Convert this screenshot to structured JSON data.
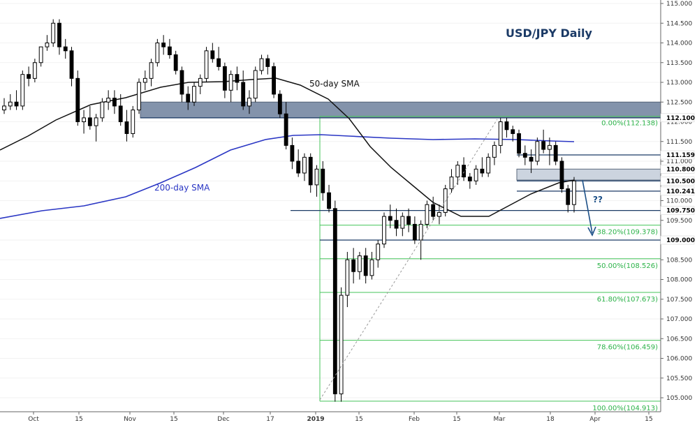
{
  "chart_data": {
    "type": "candlestick",
    "title": "USD/JPY Daily",
    "ylim": [
      104.8,
      115.1
    ],
    "y_ticks": [
      "115.000",
      "114.500",
      "114.000",
      "113.500",
      "113.000",
      "112.500",
      "112.000",
      "111.500",
      "111.000",
      "110.500",
      "110.000",
      "109.500",
      "109.000",
      "108.500",
      "108.000",
      "107.500",
      "107.000",
      "106.500",
      "106.000",
      "105.500",
      "105.000"
    ],
    "x_ticks": [
      "Oct",
      "15",
      "Nov",
      "15",
      "Dec",
      "17",
      "2019",
      "15",
      "Feb",
      "15",
      "Mar",
      "18",
      "Apr",
      "15"
    ],
    "highlight_levels": [
      "112.100",
      "111.159",
      "110.800",
      "110.522",
      "110.500",
      "110.241",
      "109.750",
      "109.000"
    ],
    "fibonacci": [
      {
        "label": "0.00%(112.138)",
        "value": 112.138
      },
      {
        "label": "38.20%(109.378)",
        "value": 109.378
      },
      {
        "label": "50.00%(108.526)",
        "value": 108.526
      },
      {
        "label": "61.80%(107.673)",
        "value": 107.673
      },
      {
        "label": "78.60%(106.459)",
        "value": 106.459
      },
      {
        "label": "100.00%(104.913)",
        "value": 104.913
      }
    ],
    "annotations": {
      "sma50_label": "50-day SMA",
      "sma200_label": "200-day SMA",
      "question": "??"
    },
    "zones": [
      {
        "name": "upper-resistance-zone",
        "from": 112.1,
        "to": 112.5
      },
      {
        "name": "mid-resistance-zone",
        "from": 110.522,
        "to": 110.8
      }
    ],
    "horizontal_lines": [
      112.1,
      111.159,
      110.5,
      110.241,
      109.75,
      109.0
    ],
    "candles": [
      [
        112.3,
        112.6,
        112.2,
        112.4
      ],
      [
        112.4,
        112.7,
        112.3,
        112.5
      ],
      [
        112.5,
        112.8,
        112.3,
        112.4
      ],
      [
        112.4,
        113.3,
        112.3,
        113.2
      ],
      [
        113.2,
        113.4,
        112.9,
        113.1
      ],
      [
        113.1,
        113.6,
        113.0,
        113.5
      ],
      [
        113.5,
        113.9,
        113.4,
        113.9
      ],
      [
        113.9,
        114.2,
        113.8,
        114.0
      ],
      [
        114.0,
        114.6,
        113.9,
        114.5
      ],
      [
        114.5,
        114.6,
        113.7,
        113.9
      ],
      [
        113.9,
        114.1,
        113.6,
        113.8
      ],
      [
        113.8,
        113.9,
        112.9,
        113.1
      ],
      [
        113.1,
        113.3,
        111.9,
        112.0
      ],
      [
        112.0,
        112.3,
        111.7,
        112.1
      ],
      [
        112.1,
        112.4,
        111.8,
        111.9
      ],
      [
        111.9,
        112.2,
        111.5,
        112.1
      ],
      [
        112.1,
        112.6,
        112.0,
        112.5
      ],
      [
        112.5,
        112.8,
        112.3,
        112.6
      ],
      [
        112.6,
        112.8,
        112.2,
        112.4
      ],
      [
        112.4,
        112.7,
        111.9,
        112.0
      ],
      [
        112.0,
        112.3,
        111.5,
        111.7
      ],
      [
        111.7,
        112.4,
        111.6,
        112.3
      ],
      [
        112.3,
        113.1,
        112.2,
        113.0
      ],
      [
        113.0,
        113.3,
        112.8,
        113.1
      ],
      [
        113.1,
        113.6,
        112.9,
        113.5
      ],
      [
        113.5,
        114.1,
        113.4,
        114.0
      ],
      [
        114.0,
        114.2,
        113.7,
        113.9
      ],
      [
        113.9,
        114.1,
        113.6,
        113.7
      ],
      [
        113.7,
        113.8,
        113.2,
        113.3
      ],
      [
        113.3,
        113.4,
        112.5,
        112.7
      ],
      [
        112.7,
        112.9,
        112.3,
        112.5
      ],
      [
        112.5,
        113.0,
        112.4,
        112.9
      ],
      [
        112.9,
        113.2,
        112.7,
        113.1
      ],
      [
        113.1,
        113.9,
        113.0,
        113.8
      ],
      [
        113.8,
        114.0,
        113.5,
        113.6
      ],
      [
        113.6,
        113.9,
        113.3,
        113.4
      ],
      [
        113.4,
        113.5,
        112.6,
        112.8
      ],
      [
        112.8,
        113.3,
        112.5,
        113.2
      ],
      [
        113.2,
        113.4,
        112.8,
        113.0
      ],
      [
        113.0,
        113.3,
        112.3,
        112.4
      ],
      [
        112.4,
        112.8,
        112.2,
        112.6
      ],
      [
        112.6,
        113.4,
        112.5,
        113.3
      ],
      [
        113.3,
        113.7,
        113.2,
        113.6
      ],
      [
        113.6,
        113.7,
        113.2,
        113.4
      ],
      [
        113.4,
        113.5,
        112.6,
        112.7
      ],
      [
        112.7,
        112.8,
        112.1,
        112.2
      ],
      [
        112.2,
        112.5,
        111.3,
        111.4
      ],
      [
        111.4,
        111.6,
        110.8,
        111.0
      ],
      [
        111.0,
        111.3,
        110.6,
        110.7
      ],
      [
        110.7,
        111.2,
        110.5,
        111.1
      ],
      [
        111.1,
        111.2,
        110.2,
        110.4
      ],
      [
        110.4,
        110.9,
        110.1,
        110.8
      ],
      [
        110.8,
        111.0,
        110.0,
        110.2
      ],
      [
        110.2,
        110.4,
        109.7,
        109.8
      ],
      [
        109.8,
        110.0,
        104.9,
        105.1
      ],
      [
        105.1,
        107.8,
        104.9,
        107.6
      ],
      [
        107.6,
        108.7,
        107.3,
        108.5
      ],
      [
        108.5,
        108.8,
        107.9,
        108.2
      ],
      [
        108.2,
        108.7,
        108.0,
        108.6
      ],
      [
        108.6,
        108.8,
        107.9,
        108.1
      ],
      [
        108.1,
        108.7,
        108.0,
        108.5
      ],
      [
        108.5,
        109.0,
        108.3,
        108.9
      ],
      [
        108.9,
        109.7,
        108.8,
        109.6
      ],
      [
        109.6,
        109.9,
        109.3,
        109.5
      ],
      [
        109.5,
        109.8,
        109.1,
        109.3
      ],
      [
        109.3,
        109.7,
        109.1,
        109.6
      ],
      [
        109.6,
        109.8,
        109.2,
        109.4
      ],
      [
        109.4,
        109.6,
        108.9,
        109.0
      ],
      [
        109.0,
        109.5,
        108.5,
        109.4
      ],
      [
        109.4,
        110.0,
        109.3,
        109.9
      ],
      [
        109.9,
        110.1,
        109.5,
        109.6
      ],
      [
        109.6,
        109.9,
        109.4,
        109.7
      ],
      [
        109.7,
        110.4,
        109.6,
        110.3
      ],
      [
        110.3,
        110.8,
        110.2,
        110.6
      ],
      [
        110.6,
        111.0,
        110.4,
        110.9
      ],
      [
        110.9,
        111.1,
        110.5,
        110.6
      ],
      [
        110.6,
        110.7,
        110.3,
        110.5
      ],
      [
        110.5,
        110.9,
        110.4,
        110.8
      ],
      [
        110.8,
        111.1,
        110.6,
        110.7
      ],
      [
        110.7,
        111.2,
        110.6,
        111.1
      ],
      [
        111.1,
        111.5,
        110.9,
        111.4
      ],
      [
        111.4,
        112.1,
        111.2,
        112.0
      ],
      [
        112.0,
        112.1,
        111.6,
        111.8
      ],
      [
        111.8,
        111.9,
        111.5,
        111.7
      ],
      [
        111.7,
        111.8,
        111.1,
        111.2
      ],
      [
        111.2,
        111.4,
        110.9,
        111.1
      ],
      [
        111.1,
        111.3,
        110.7,
        111.0
      ],
      [
        111.0,
        111.6,
        110.9,
        111.5
      ],
      [
        111.5,
        111.8,
        111.2,
        111.3
      ],
      [
        111.3,
        111.6,
        110.9,
        111.4
      ],
      [
        111.4,
        111.5,
        110.9,
        111.0
      ],
      [
        111.0,
        111.1,
        110.2,
        110.3
      ],
      [
        110.3,
        110.4,
        109.7,
        109.9
      ],
      [
        109.9,
        110.6,
        109.7,
        110.5
      ]
    ]
  }
}
